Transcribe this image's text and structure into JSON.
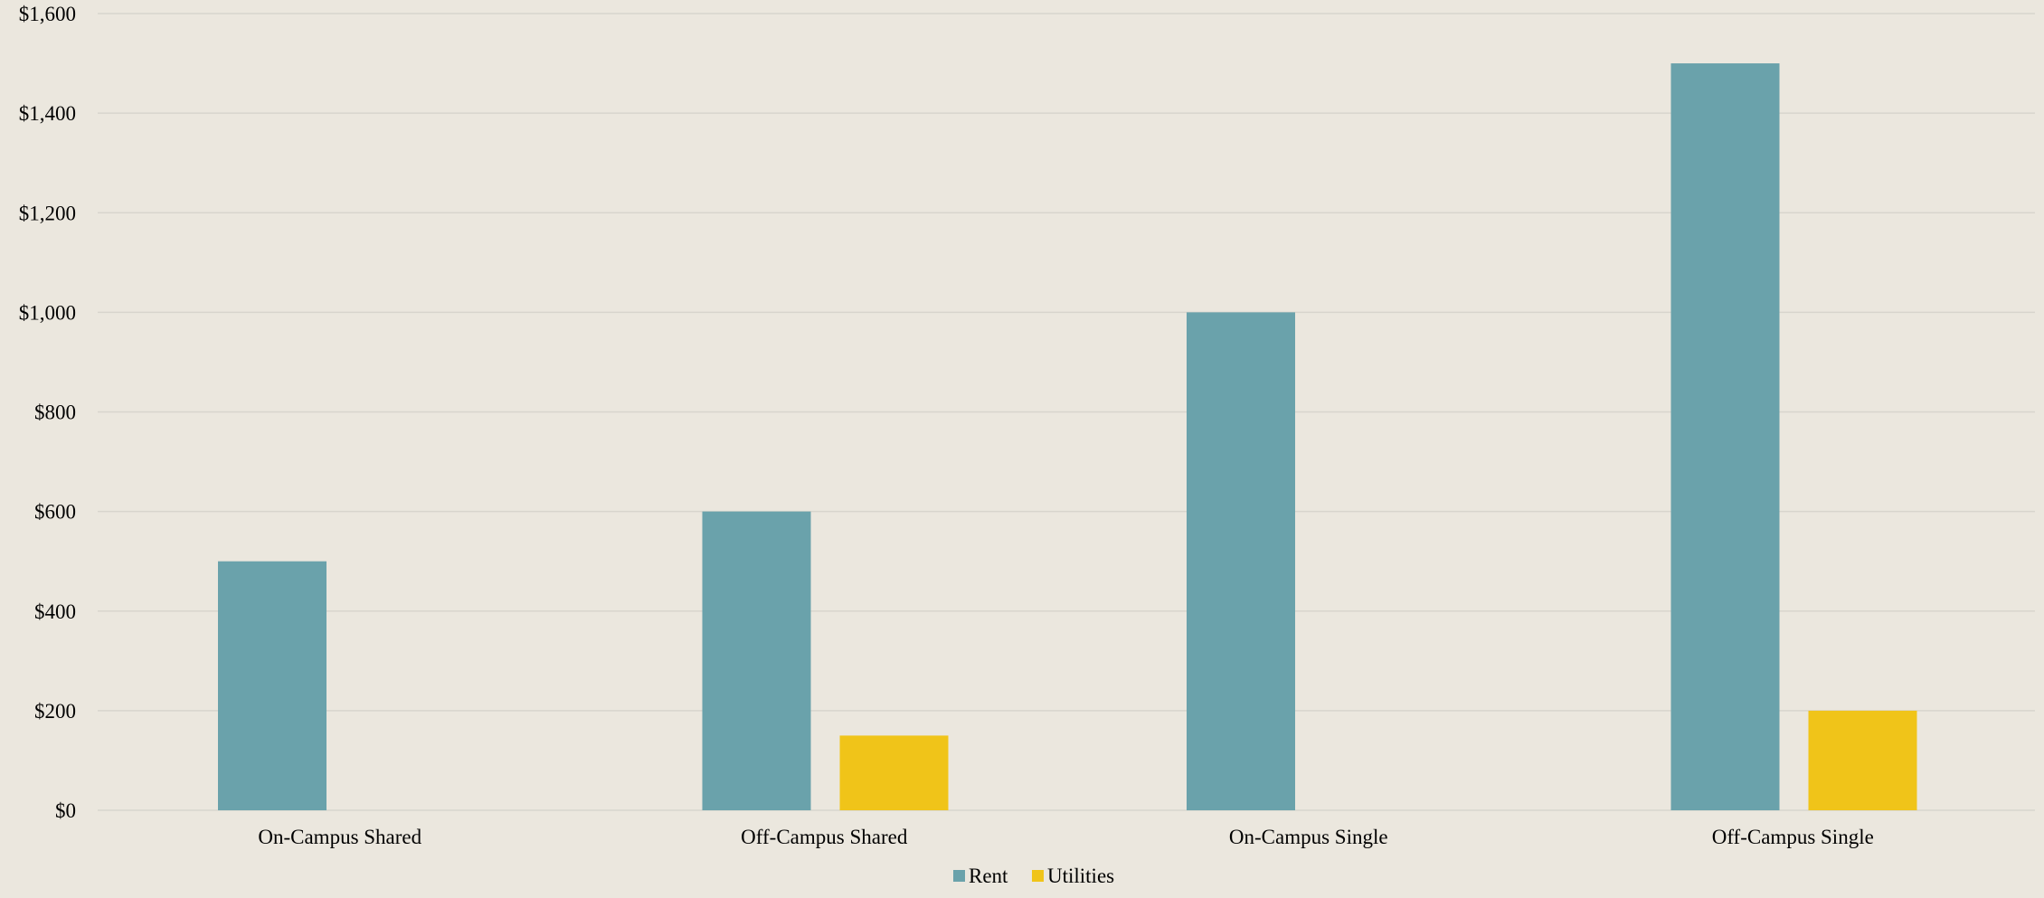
{
  "chart_data": {
    "type": "bar",
    "title": "",
    "xlabel": "",
    "ylabel": "",
    "categories": [
      "On-Campus Shared",
      "Off-Campus Shared",
      "On-Campus Single",
      "Off-Campus Single"
    ],
    "series": [
      {
        "name": "Rent",
        "color": "#6aa2ab",
        "values": [
          500,
          600,
          1000,
          1500
        ]
      },
      {
        "name": "Utilities",
        "color": "#f0c419",
        "values": [
          0,
          150,
          0,
          200
        ]
      }
    ],
    "ylim": [
      0,
      1600
    ],
    "y_ticks": [
      0,
      200,
      400,
      600,
      800,
      1000,
      1200,
      1400,
      1600
    ],
    "y_tick_labels": [
      "$0",
      "$200",
      "$400",
      "$600",
      "$800",
      "$1,000",
      "$1,200",
      "$1,400",
      "$1,600"
    ],
    "grid": true,
    "legend_position": "bottom",
    "background_color": "#ebe7de"
  }
}
